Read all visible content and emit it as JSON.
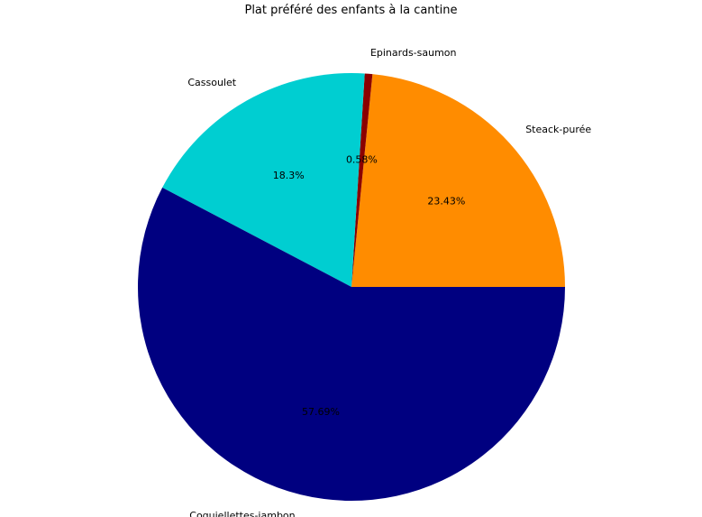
{
  "chart_data": {
    "type": "pie",
    "title": "Plat préféré des enfants à la cantine",
    "categories": [
      "Steack-purée",
      "Epinards-saumon",
      "Cassoulet",
      "Coquiellettes-jambon"
    ],
    "values": [
      23.43,
      0.58,
      18.3,
      57.69
    ],
    "percent_labels": [
      "23.43%",
      "0.58%",
      "18.3%",
      "57.69%"
    ],
    "colors": [
      "#ff8c00",
      "#8b0000",
      "#00ced1",
      "#000080"
    ],
    "start_angle_deg": 0,
    "direction": "counterclockwise",
    "legend": "none"
  }
}
